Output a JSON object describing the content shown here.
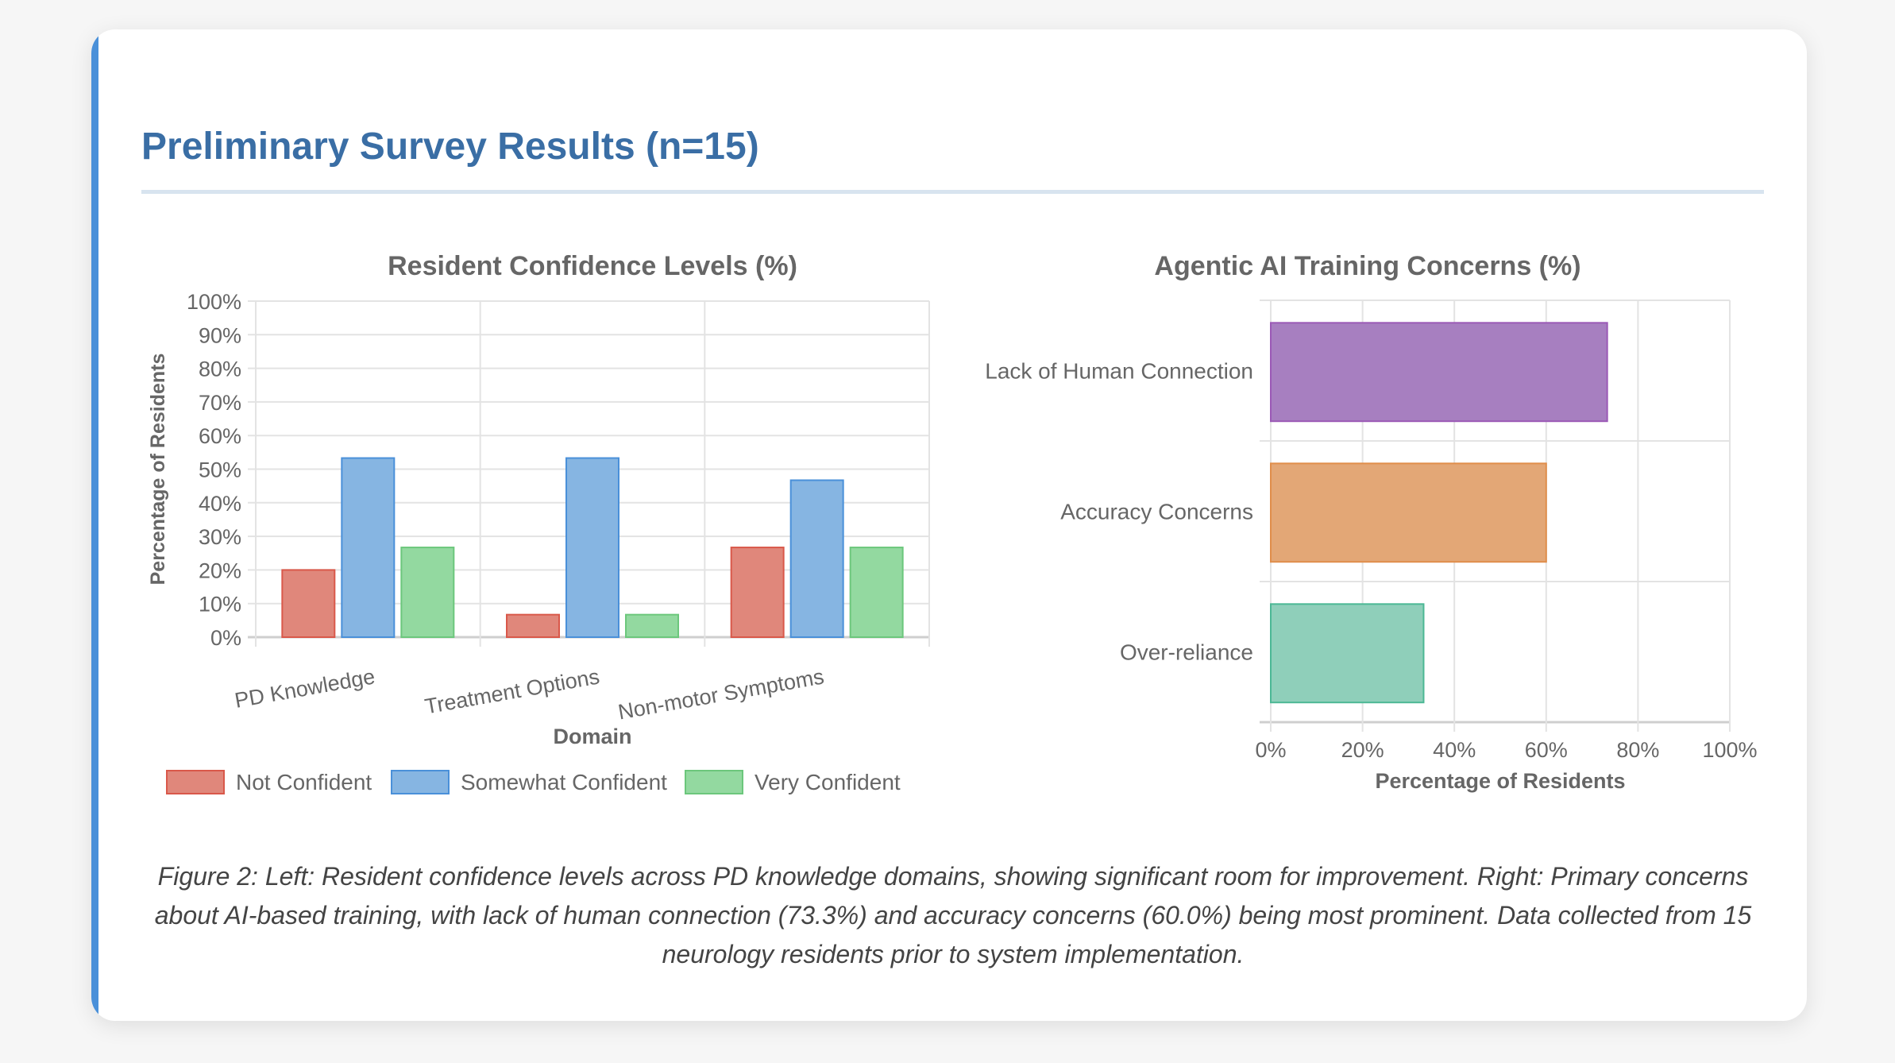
{
  "header": {
    "title": "Preliminary Survey Results (n=15)"
  },
  "colors": {
    "accent": "#4a90d9",
    "title": "#3a6ea5"
  },
  "chart_data": [
    {
      "type": "bar",
      "orientation": "vertical",
      "title": "Resident Confidence Levels (%)",
      "xlabel": "Domain",
      "ylabel": "Percentage of Residents",
      "categories": [
        "PD Knowledge",
        "Treatment Options",
        "Non-motor Symptoms"
      ],
      "series": [
        {
          "name": "Not Confident",
          "values": [
            20.0,
            6.7,
            26.7
          ],
          "fill": "#e0877b",
          "stroke": "#d9584a"
        },
        {
          "name": "Somewhat Confident",
          "values": [
            53.3,
            53.3,
            46.7
          ],
          "fill": "#86b5e2",
          "stroke": "#4a90d9"
        },
        {
          "name": "Very Confident",
          "values": [
            26.7,
            6.7,
            26.7
          ],
          "fill": "#93d9a0",
          "stroke": "#6cc77c"
        }
      ],
      "ylim": [
        0,
        100
      ],
      "yticks": [
        "0%",
        "10%",
        "20%",
        "30%",
        "40%",
        "50%",
        "60%",
        "70%",
        "80%",
        "90%",
        "100%"
      ],
      "grid": true,
      "legend": "bottom"
    },
    {
      "type": "bar",
      "orientation": "horizontal",
      "title": "Agentic AI Training Concerns (%)",
      "xlabel": "Percentage of Residents",
      "categories": [
        "Lack of Human Connection",
        "Accuracy Concerns",
        "Over-reliance"
      ],
      "values": [
        73.3,
        60.0,
        33.3
      ],
      "fills": [
        "#a77fc0",
        "#e3a776",
        "#8fcfba"
      ],
      "strokes": [
        "#9b59b6",
        "#e08e4b",
        "#4cb895"
      ],
      "xlim": [
        0,
        100
      ],
      "xticks": [
        "0%",
        "20%",
        "40%",
        "60%",
        "80%",
        "100%"
      ],
      "grid": true
    }
  ],
  "caption": "Figure 2: Left: Resident confidence levels across PD knowledge domains, showing significant room for improvement. Right: Primary concerns about AI-based training, with lack of human connection (73.3%) and accuracy concerns (60.0%) being most prominent. Data collected from 15 neurology residents prior to system implementation."
}
